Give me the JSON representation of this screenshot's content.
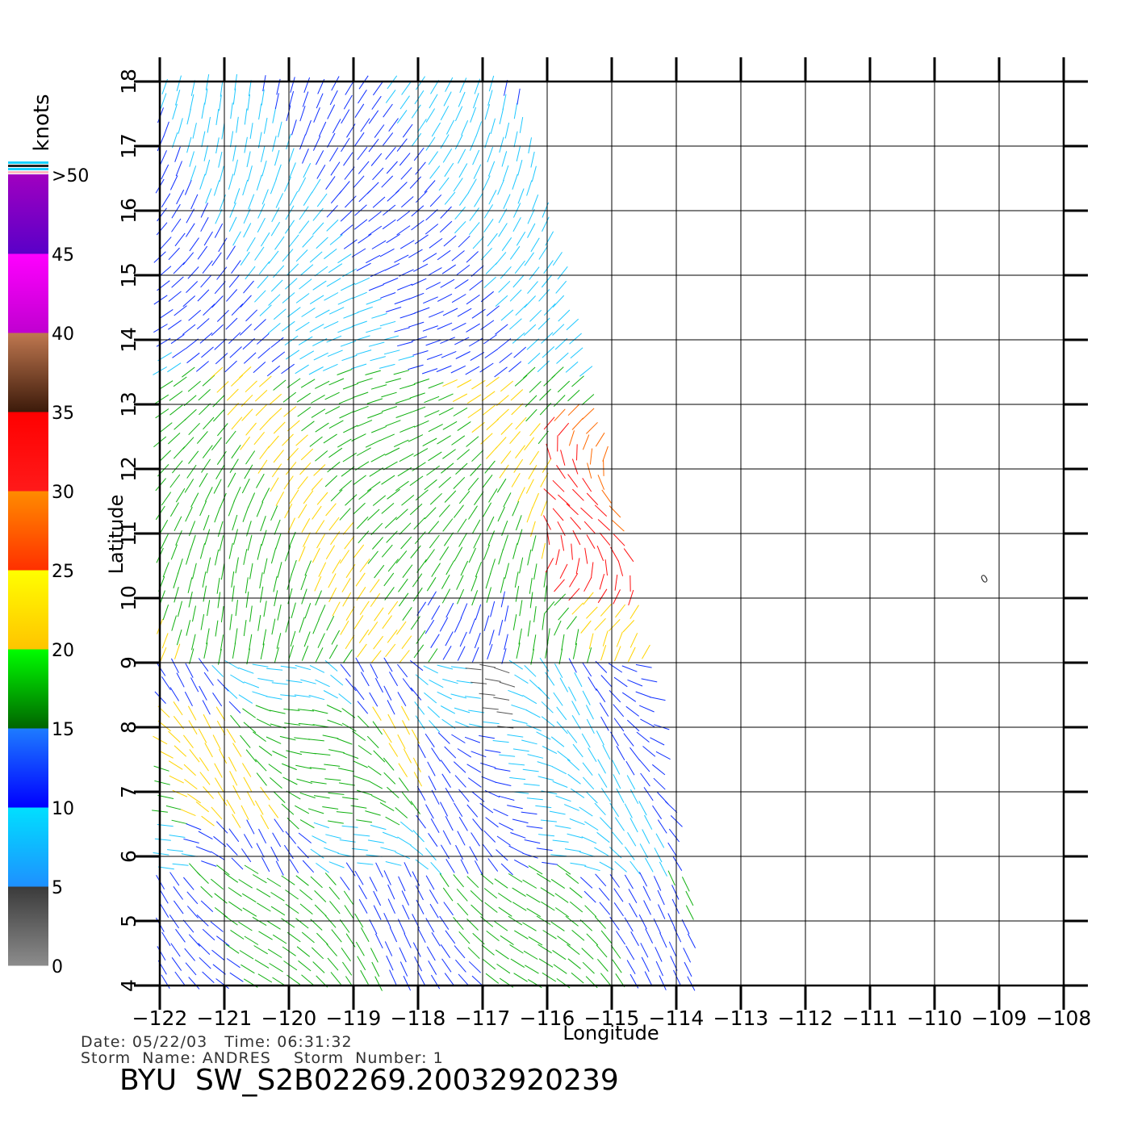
{
  "chart_data": {
    "type": "vector-field",
    "xlabel": "Longitude",
    "ylabel": "Latitude",
    "xlim": [
      -122,
      -108
    ],
    "ylim": [
      4,
      18
    ],
    "x_ticks": [
      "−122",
      "−121",
      "−120",
      "−119",
      "−118",
      "−117",
      "−116",
      "−115",
      "−114",
      "−113",
      "−112",
      "−111",
      "−110",
      "−109",
      "−108"
    ],
    "y_ticks": [
      "4",
      "5",
      "6",
      "7",
      "8",
      "9",
      "10",
      "11",
      "12",
      "13",
      "14",
      "15",
      "16",
      "17",
      "18"
    ],
    "grid": true,
    "colorbar": {
      "title": "knots",
      "labels": [
        "0",
        "5",
        "10",
        "15",
        "20",
        "25",
        "30",
        "35",
        "40",
        "45",
        ">50"
      ],
      "bands": [
        {
          "from": 0,
          "to": 5,
          "top": "#3a3a3a",
          "bottom": "#8c8c8c"
        },
        {
          "from": 5,
          "to": 10,
          "top": "#00e0ff",
          "bottom": "#1e90ff"
        },
        {
          "from": 10,
          "to": 15,
          "top": "#1e7cff",
          "bottom": "#0000ff"
        },
        {
          "from": 15,
          "to": 20,
          "top": "#00ff00",
          "bottom": "#006400"
        },
        {
          "from": 20,
          "to": 25,
          "top": "#ffff00",
          "bottom": "#ffc400"
        },
        {
          "from": 25,
          "to": 30,
          "top": "#ff8c00",
          "bottom": "#ff3000"
        },
        {
          "from": 30,
          "to": 35,
          "top": "#ff0000",
          "bottom": "#ff1a1a"
        },
        {
          "from": 35,
          "to": 40,
          "top": "#c07850",
          "bottom": "#3c1a0a"
        },
        {
          "from": 40,
          "to": 45,
          "top": "#ff00ff",
          "bottom": "#c000d0"
        },
        {
          "from": 45,
          "to": 50,
          "top": "#a000c0",
          "bottom": "#5a00c8"
        }
      ]
    },
    "swath": {
      "polygon": [
        [
          -122,
          18
        ],
        [
          -116.5,
          18
        ],
        [
          -116,
          16
        ],
        [
          -115,
          12
        ],
        [
          -114,
          7
        ],
        [
          -113.6,
          4
        ],
        [
          -122,
          4
        ]
      ]
    },
    "annotations": [
      {
        "text": "0",
        "lon": -109.2,
        "lat": 10.25
      }
    ]
  },
  "footer": {
    "date_line": "Date: 05/22/03   Time: 06:31:32",
    "storm_line": "Storm  Name: ANDRES    Storm  Number: 1",
    "title": "BYU  SW_S2B02269.20032920239"
  }
}
